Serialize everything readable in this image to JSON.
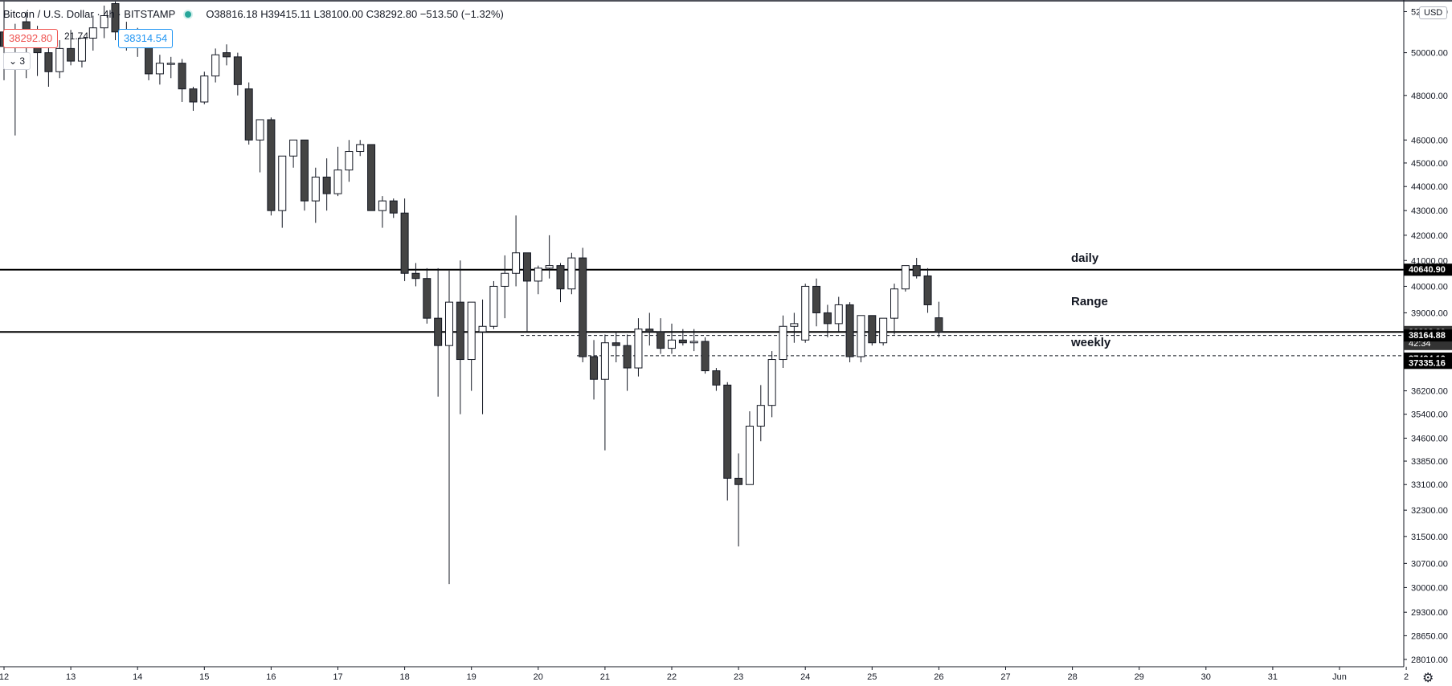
{
  "header": {
    "symbol": "Bitcoin / U.S. Dollar · 4h · BITSTAMP",
    "ohlc": "O38816.18 H39415.11 L38100.00 C38292.80 −513.50 (−1.32%)",
    "sell_price": "38292.80",
    "spread": "21.74",
    "buy_price": "38314.54",
    "quantity": "3"
  },
  "currency_button": "USD",
  "settings_icon": "gear-icon",
  "annotations": {
    "daily": "daily",
    "range": "Range",
    "weekly": "weekly"
  },
  "colors": {
    "bear": "#444444",
    "bull": "#ffffff",
    "outline": "#131722",
    "sell": "#ef5350",
    "buy": "#2196f3",
    "live": "#26a69a"
  },
  "chart_data": {
    "type": "candlestick",
    "y_scale": "log",
    "ylim": [
      27900,
      52500
    ],
    "y_ticks": [
      "52000.00",
      "50000.00",
      "48000.00",
      "46000.00",
      "45000.00",
      "44000.00",
      "43000.00",
      "42000.00",
      "41000.00",
      "40000.00",
      "39000.00",
      "36200.00",
      "35400.00",
      "34600.00",
      "33850.00",
      "33100.00",
      "32300.00",
      "31500.00",
      "30700.00",
      "30000.00",
      "29300.00",
      "28650.00",
      "28010.00"
    ],
    "y_tick_values": [
      52000,
      50000,
      48000,
      46000,
      45000,
      44000,
      43000,
      42000,
      41000,
      40000,
      39000,
      36200,
      35400,
      34600,
      33850,
      33100,
      32300,
      31500,
      30700,
      30000,
      29300,
      28650,
      28010
    ],
    "x_ticks": [
      {
        "label": "12",
        "slot": 0
      },
      {
        "label": "13",
        "slot": 6
      },
      {
        "label": "14",
        "slot": 12
      },
      {
        "label": "15",
        "slot": 18
      },
      {
        "label": "16",
        "slot": 24
      },
      {
        "label": "17",
        "slot": 30
      },
      {
        "label": "18",
        "slot": 36
      },
      {
        "label": "19",
        "slot": 42
      },
      {
        "label": "20",
        "slot": 48
      },
      {
        "label": "21",
        "slot": 54
      },
      {
        "label": "22",
        "slot": 60
      },
      {
        "label": "23",
        "slot": 66
      },
      {
        "label": "24",
        "slot": 72
      },
      {
        "label": "25",
        "slot": 78
      },
      {
        "label": "26",
        "slot": 84
      },
      {
        "label": "27",
        "slot": 90
      },
      {
        "label": "28",
        "slot": 96
      },
      {
        "label": "29",
        "slot": 102
      },
      {
        "label": "30",
        "slot": 108
      },
      {
        "label": "31",
        "slot": 114
      },
      {
        "label": "Jun",
        "slot": 120
      },
      {
        "label": "2",
        "slot": 126
      }
    ],
    "levels": [
      {
        "name": "daily",
        "value": 40640.9,
        "label": "40640.90",
        "style": "solid"
      },
      {
        "name": "weekly",
        "value": 38292.8,
        "label": "38292.80",
        "sublabel": "42:34",
        "style": "solid"
      },
      {
        "name": "level-1",
        "value": 38164.88,
        "label": "38164.88",
        "style": "dashed"
      },
      {
        "name": "level-2",
        "value": 37434.1,
        "label": "37434.10",
        "style": "dashed"
      },
      {
        "name": "level-3",
        "value": 37335.16,
        "label": "37335.16",
        "style": "none"
      }
    ],
    "candles": [
      {
        "o": 51000,
        "h": 52500,
        "l": 48700,
        "c": 50300
      },
      {
        "o": 50300,
        "h": 51400,
        "l": 46200,
        "c": 50900
      },
      {
        "o": 51500,
        "h": 52000,
        "l": 48800,
        "c": 50400
      },
      {
        "o": 50500,
        "h": 51300,
        "l": 48900,
        "c": 50000
      },
      {
        "o": 50000,
        "h": 51000,
        "l": 48400,
        "c": 49100
      },
      {
        "o": 49100,
        "h": 50600,
        "l": 48800,
        "c": 50200
      },
      {
        "o": 50200,
        "h": 51100,
        "l": 49400,
        "c": 49600
      },
      {
        "o": 49600,
        "h": 50600,
        "l": 49300,
        "c": 50700
      },
      {
        "o": 50700,
        "h": 51800,
        "l": 50100,
        "c": 51200
      },
      {
        "o": 51200,
        "h": 52300,
        "l": 50700,
        "c": 51800
      },
      {
        "o": 52400,
        "h": 52500,
        "l": 50600,
        "c": 51000
      },
      {
        "o": 51000,
        "h": 51500,
        "l": 50100,
        "c": 50600
      },
      {
        "o": 50600,
        "h": 51200,
        "l": 49800,
        "c": 50300
      },
      {
        "o": 50300,
        "h": 50600,
        "l": 48700,
        "c": 49000
      },
      {
        "o": 49000,
        "h": 49900,
        "l": 48500,
        "c": 49500
      },
      {
        "o": 49500,
        "h": 49800,
        "l": 48800,
        "c": 49500
      },
      {
        "o": 49500,
        "h": 49700,
        "l": 47700,
        "c": 48300
      },
      {
        "o": 48300,
        "h": 48400,
        "l": 47300,
        "c": 47700
      },
      {
        "o": 47700,
        "h": 49100,
        "l": 47600,
        "c": 48900
      },
      {
        "o": 48900,
        "h": 50200,
        "l": 48600,
        "c": 49900
      },
      {
        "o": 50000,
        "h": 50400,
        "l": 49400,
        "c": 49800
      },
      {
        "o": 49800,
        "h": 50000,
        "l": 48000,
        "c": 48500
      },
      {
        "o": 48300,
        "h": 48600,
        "l": 45800,
        "c": 46000
      },
      {
        "o": 46000,
        "h": 46800,
        "l": 44600,
        "c": 46900
      },
      {
        "o": 46900,
        "h": 47000,
        "l": 42800,
        "c": 43000
      },
      {
        "o": 43000,
        "h": 45300,
        "l": 42300,
        "c": 45300
      },
      {
        "o": 45300,
        "h": 46000,
        "l": 44800,
        "c": 46000
      },
      {
        "o": 46000,
        "h": 46000,
        "l": 43000,
        "c": 43400
      },
      {
        "o": 43400,
        "h": 44800,
        "l": 42500,
        "c": 44400
      },
      {
        "o": 44400,
        "h": 45200,
        "l": 43000,
        "c": 43700
      },
      {
        "o": 43700,
        "h": 45700,
        "l": 43600,
        "c": 44700
      },
      {
        "o": 44700,
        "h": 46000,
        "l": 44200,
        "c": 45500
      },
      {
        "o": 45500,
        "h": 46000,
        "l": 45300,
        "c": 45800
      },
      {
        "o": 45800,
        "h": 45800,
        "l": 43000,
        "c": 43000
      },
      {
        "o": 43000,
        "h": 43600,
        "l": 42300,
        "c": 43400
      },
      {
        "o": 43400,
        "h": 43500,
        "l": 42700,
        "c": 42900
      },
      {
        "o": 42900,
        "h": 43500,
        "l": 40200,
        "c": 40500
      },
      {
        "o": 40500,
        "h": 40900,
        "l": 40000,
        "c": 40300
      },
      {
        "o": 40300,
        "h": 40700,
        "l": 38600,
        "c": 38800
      },
      {
        "o": 38800,
        "h": 40700,
        "l": 36000,
        "c": 37800
      },
      {
        "o": 37800,
        "h": 40600,
        "l": 30100,
        "c": 39400
      },
      {
        "o": 39400,
        "h": 41000,
        "l": 35400,
        "c": 37300
      },
      {
        "o": 37300,
        "h": 39400,
        "l": 36200,
        "c": 39400
      },
      {
        "o": 38300,
        "h": 39500,
        "l": 35400,
        "c": 38500
      },
      {
        "o": 38500,
        "h": 40200,
        "l": 38400,
        "c": 40000
      },
      {
        "o": 40000,
        "h": 41200,
        "l": 38800,
        "c": 40500
      },
      {
        "o": 40500,
        "h": 42800,
        "l": 40000,
        "c": 41300
      },
      {
        "o": 41300,
        "h": 41300,
        "l": 38300,
        "c": 40200
      },
      {
        "o": 40200,
        "h": 40800,
        "l": 39700,
        "c": 40700
      },
      {
        "o": 40700,
        "h": 42000,
        "l": 40300,
        "c": 40800
      },
      {
        "o": 40800,
        "h": 40900,
        "l": 39400,
        "c": 39900
      },
      {
        "o": 39900,
        "h": 41300,
        "l": 39700,
        "c": 41100
      },
      {
        "o": 41100,
        "h": 41500,
        "l": 37200,
        "c": 37400
      },
      {
        "o": 37400,
        "h": 38000,
        "l": 35900,
        "c": 36600
      },
      {
        "o": 36600,
        "h": 38200,
        "l": 34200,
        "c": 37900
      },
      {
        "o": 37900,
        "h": 38300,
        "l": 37200,
        "c": 37800
      },
      {
        "o": 37800,
        "h": 38200,
        "l": 36200,
        "c": 37000
      },
      {
        "o": 37000,
        "h": 38800,
        "l": 36700,
        "c": 38400
      },
      {
        "o": 38400,
        "h": 39000,
        "l": 37800,
        "c": 38300
      },
      {
        "o": 38300,
        "h": 38800,
        "l": 37500,
        "c": 37700
      },
      {
        "o": 37700,
        "h": 38600,
        "l": 37500,
        "c": 38000
      },
      {
        "o": 38000,
        "h": 38400,
        "l": 37800,
        "c": 37900
      },
      {
        "o": 37900,
        "h": 38400,
        "l": 37600,
        "c": 37950
      },
      {
        "o": 37950,
        "h": 38100,
        "l": 36800,
        "c": 36900
      },
      {
        "o": 36900,
        "h": 37000,
        "l": 36200,
        "c": 36400
      },
      {
        "o": 36400,
        "h": 36500,
        "l": 32600,
        "c": 33300
      },
      {
        "o": 33300,
        "h": 34100,
        "l": 31200,
        "c": 33100
      },
      {
        "o": 33100,
        "h": 35500,
        "l": 33100,
        "c": 35000
      },
      {
        "o": 35000,
        "h": 36400,
        "l": 34500,
        "c": 35700
      },
      {
        "o": 35700,
        "h": 37600,
        "l": 35300,
        "c": 37300
      },
      {
        "o": 37300,
        "h": 38900,
        "l": 37000,
        "c": 38500
      },
      {
        "o": 38500,
        "h": 39000,
        "l": 37900,
        "c": 38600
      },
      {
        "o": 38000,
        "h": 40100,
        "l": 37900,
        "c": 40000
      },
      {
        "o": 40000,
        "h": 40300,
        "l": 38500,
        "c": 39000
      },
      {
        "o": 39000,
        "h": 39300,
        "l": 38100,
        "c": 38600
      },
      {
        "o": 38600,
        "h": 39600,
        "l": 38300,
        "c": 39300
      },
      {
        "o": 39300,
        "h": 39400,
        "l": 37200,
        "c": 37400
      },
      {
        "o": 37400,
        "h": 38800,
        "l": 37200,
        "c": 38900
      },
      {
        "o": 38900,
        "h": 38900,
        "l": 37800,
        "c": 37900
      },
      {
        "o": 37900,
        "h": 38700,
        "l": 37800,
        "c": 38800
      },
      {
        "o": 38800,
        "h": 40100,
        "l": 38200,
        "c": 39900
      },
      {
        "o": 39900,
        "h": 40800,
        "l": 39800,
        "c": 40800
      },
      {
        "o": 40800,
        "h": 41100,
        "l": 40300,
        "c": 40400
      },
      {
        "o": 40400,
        "h": 40700,
        "l": 39000,
        "c": 39300
      },
      {
        "o": 38816.18,
        "h": 39415.11,
        "l": 38100.0,
        "c": 38292.8
      }
    ]
  }
}
